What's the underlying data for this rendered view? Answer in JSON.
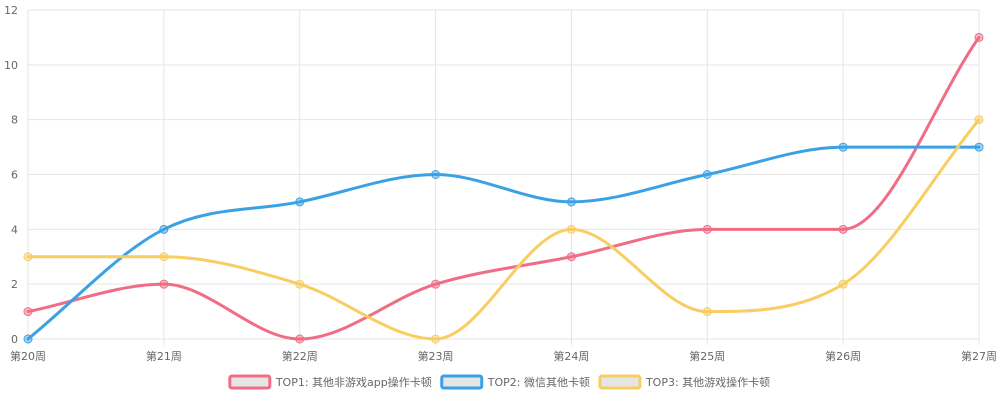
{
  "chart_data": {
    "type": "line",
    "categories": [
      "第20周",
      "第21周",
      "第22周",
      "第23周",
      "第24周",
      "第25周",
      "第26周",
      "第27周"
    ],
    "ylim": [
      0,
      12
    ],
    "yticks": [
      0,
      2,
      4,
      6,
      8,
      10,
      12
    ],
    "grid": true,
    "legend_position": "bottom",
    "series": [
      {
        "name": "TOP1: 其他非游戏app操作卡顿",
        "color": "#f06d86",
        "values": [
          1,
          2,
          0,
          2,
          3,
          4,
          4,
          11
        ]
      },
      {
        "name": "TOP2: 微信其他卡顿",
        "color": "#3aa2e4",
        "values": [
          0,
          4,
          5,
          6,
          5,
          6,
          7,
          7
        ]
      },
      {
        "name": "TOP3: 其他游戏操作卡顿",
        "color": "#f8cd62",
        "values": [
          3,
          3,
          2,
          0,
          4,
          1,
          2,
          8
        ]
      }
    ]
  }
}
